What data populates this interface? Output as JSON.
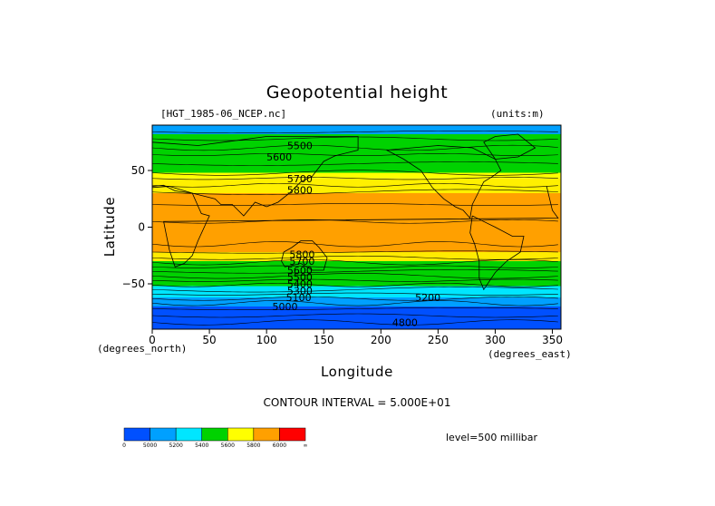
{
  "header": {
    "title": "Geopotential height",
    "source_label": "[HGT_1985-06_NCEP.nc]",
    "units_label": "(units:m)"
  },
  "footer": {
    "contour_interval": "CONTOUR INTERVAL = 5.000E+01",
    "level": "level=500 millibar"
  },
  "colors": {
    "frame": "#000000",
    "colorbar_edges": "#000000"
  },
  "chart_data": {
    "type": "heatmap",
    "title": "Geopotential height",
    "xlabel": "Longitude",
    "ylabel": "Latitude",
    "x_units": "(degrees_east)",
    "y_units": "(degrees_north)",
    "xlim": [
      0,
      357.5
    ],
    "ylim": [
      -90,
      90
    ],
    "xticks": [
      0,
      50,
      100,
      150,
      200,
      250,
      300,
      350
    ],
    "xtick_labels": [
      "0",
      "50",
      "100",
      "150",
      "200",
      "250",
      "300",
      "350"
    ],
    "yticks": [
      50,
      0,
      -50
    ],
    "ytick_labels": [
      "50",
      "0",
      "−50"
    ],
    "bands": [
      {
        "lat_top": 90,
        "lat_bottom": 82,
        "value": 5400,
        "color": "#00a0ff"
      },
      {
        "lat_top": 82,
        "lat_bottom": 48,
        "value": 5500,
        "color": "#00d200"
      },
      {
        "lat_top": 48,
        "lat_bottom": 43,
        "value": 5700,
        "color": "#ffff00"
      },
      {
        "lat_top": 43,
        "lat_bottom": 30,
        "value": 5800,
        "color": "#fff000"
      },
      {
        "lat_top": 30,
        "lat_bottom": -22,
        "value": 5850,
        "color": "#ffa000"
      },
      {
        "lat_top": -22,
        "lat_bottom": -30,
        "value": 5750,
        "color": "#ffeb00"
      },
      {
        "lat_top": -30,
        "lat_bottom": -52,
        "value": 5500,
        "color": "#00d200"
      },
      {
        "lat_top": -52,
        "lat_bottom": -62,
        "value": 5300,
        "color": "#00e6ff"
      },
      {
        "lat_top": -62,
        "lat_bottom": -70,
        "value": 5100,
        "color": "#00a0ff"
      },
      {
        "lat_top": -70,
        "lat_bottom": -90,
        "value": 5000,
        "color": "#0050ff"
      }
    ],
    "contour_labels": [
      {
        "text": "5500",
        "lon": 118,
        "lat": 72
      },
      {
        "text": "5600",
        "lon": 100,
        "lat": 62
      },
      {
        "text": "5700",
        "lon": 118,
        "lat": 43
      },
      {
        "text": "5800",
        "lon": 118,
        "lat": 33
      },
      {
        "text": "5800",
        "lon": 120,
        "lat": -24
      },
      {
        "text": "5700",
        "lon": 120,
        "lat": -30
      },
      {
        "text": "5600",
        "lon": 118,
        "lat": -38
      },
      {
        "text": "5500",
        "lon": 118,
        "lat": -44
      },
      {
        "text": "5400",
        "lon": 118,
        "lat": -50
      },
      {
        "text": "5300",
        "lon": 118,
        "lat": -56
      },
      {
        "text": "5100",
        "lon": 117,
        "lat": -62
      },
      {
        "text": "5200",
        "lon": 230,
        "lat": -62
      },
      {
        "text": "5000",
        "lon": 105,
        "lat": -70
      },
      {
        "text": "4800",
        "lon": 210,
        "lat": -84
      }
    ],
    "colorbar": {
      "colors": [
        "#0050ff",
        "#00a0ff",
        "#00e6ff",
        "#00d200",
        "#ffff00",
        "#ffa000",
        "#ff0000"
      ],
      "labels": [
        "0",
        "5000",
        "5200",
        "5400",
        "5600",
        "5800",
        "6000",
        "∞"
      ]
    }
  }
}
